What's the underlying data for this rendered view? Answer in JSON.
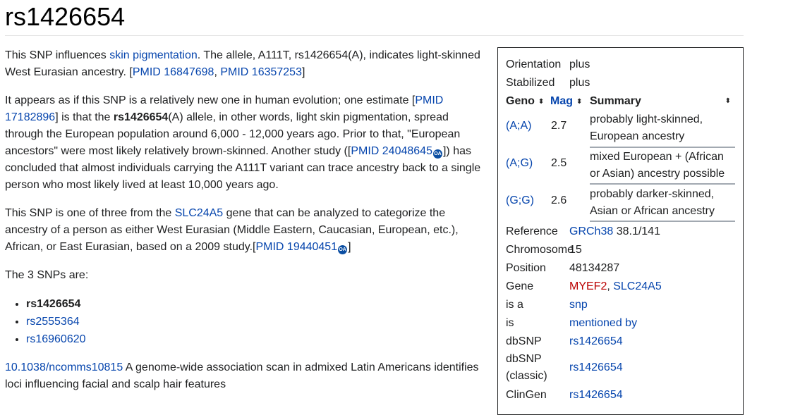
{
  "title": "rs1426654",
  "article": {
    "p1": {
      "t1": "This SNP influences ",
      "link1": "skin pigmentation",
      "t2": ". The allele, A111T, rs1426654(A), indicates light-skinned West Eurasian ancestry. [",
      "link2": "PMID 16847698",
      "t3": ", ",
      "link3": "PMID 16357253",
      "t4": "]"
    },
    "p2": {
      "t1": "It appears as if this SNP is a relatively new one in human evolution; one estimate [",
      "link1": "PMID 17182896",
      "t2": "] is that the ",
      "bold": "rs1426654",
      "t3": "(A) allele, in other words, light skin pigmentation, spread through the European population around 6,000 - 12,000 years ago. Prior to that, \"European ancestors\" were most likely relatively brown-skinned. Another study ([",
      "link2": "PMID 24048645",
      "oa": "OA",
      "t4": "]) has concluded that almost individuals carrying the A111T variant can trace ancestry back to a single person who most likely lived at least 10,000 years ago."
    },
    "p3": {
      "t1": "This SNP is one of three from the ",
      "link1": "SLC24A5",
      "t2": " gene that can be analyzed to categorize the ancestry of a person as either West Eurasian (Middle Eastern, Caucasian, European, etc.), African, or East Eurasian, based on a 2009 study.[",
      "link2": "PMID 19440451",
      "oa": "OA",
      "t3": "]"
    },
    "p4": "The 3 SNPs are:",
    "snps": [
      "rs1426654",
      "rs2555364",
      "rs16960620"
    ],
    "p5": {
      "link1": "10.1038/ncomms10815",
      "t1": " A genome-wide association scan in admixed Latin Americans identifies loci influencing facial and scalp hair features"
    }
  },
  "infobox": {
    "orientation_label": "Orientation",
    "orientation_value": "plus",
    "stabilized_label": "Stabilized",
    "stabilized_value": "plus",
    "headers": {
      "geno": "Geno",
      "mag": "Mag",
      "summary": "Summary",
      "sort_glyph": "⬍"
    },
    "genotypes": [
      {
        "geno": "(A;A)",
        "mag": "2.7",
        "summary1": "probably light-skinned,",
        "summary2": "European ancestry"
      },
      {
        "geno": "(A;G)",
        "mag": "2.5",
        "summary1": "mixed European + (African",
        "summary2": "or Asian) ancestry possible"
      },
      {
        "geno": "(G;G)",
        "mag": "2.6",
        "summary1": "probably darker-skinned,",
        "summary2": "Asian or African ancestry"
      }
    ],
    "reference_label": "Reference",
    "reference_link": "GRCh38",
    "reference_text": " 38.1/141",
    "chromosome_label": "Chromosome",
    "chromosome_value": "15",
    "position_label": "Position",
    "position_value": "48134287",
    "gene_label": "Gene",
    "gene_link1": "MYEF2",
    "gene_sep": ", ",
    "gene_link2": "SLC24A5",
    "isa_label": "is a",
    "isa_value": "snp",
    "is_label": "is",
    "is_value": "mentioned by",
    "dbsnp_label": "dbSNP",
    "dbsnp_value": "rs1426654",
    "dbsnp_classic_label1": "dbSNP",
    "dbsnp_classic_label2": "(classic)",
    "dbsnp_classic_value": "rs1426654",
    "clingen_label": "ClinGen",
    "clingen_value": "rs1426654"
  }
}
